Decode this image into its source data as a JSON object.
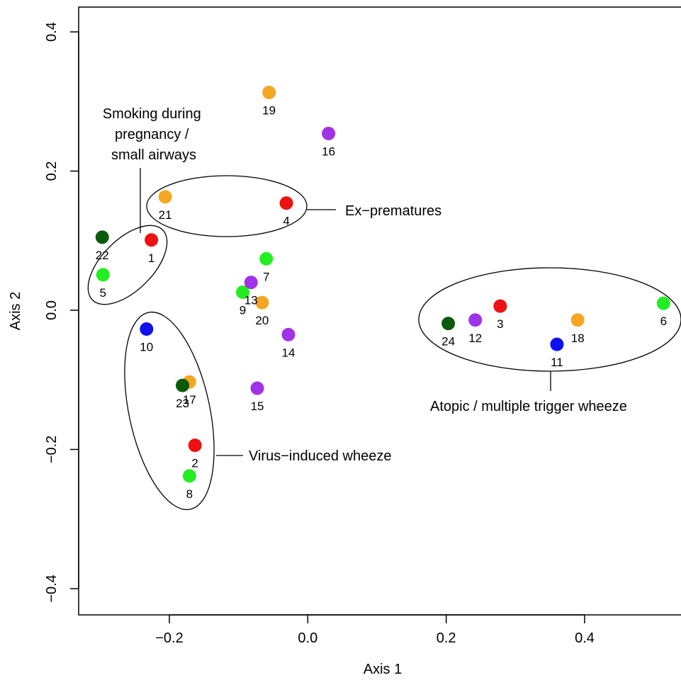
{
  "chart_data": {
    "type": "scatter",
    "title": "",
    "xlabel": "Axis 1",
    "ylabel": "Axis 2",
    "xlim": [
      -0.325,
      0.53
    ],
    "ylim": [
      -0.44,
      0.44
    ],
    "x_ticks": [
      -0.2,
      0.0,
      0.2,
      0.4
    ],
    "x_tick_labels": [
      "−0.2",
      "0.0",
      "0.2",
      "0.4"
    ],
    "y_ticks": [
      -0.4,
      -0.2,
      0.0,
      0.2,
      0.4
    ],
    "y_tick_labels": [
      "−0.4",
      "−0.2",
      "0.0",
      "0.2",
      "0.4"
    ],
    "grid": false,
    "legend": "none",
    "colors": {
      "red": "#ee1111",
      "orange": "#f5a623",
      "green": "#22ee22",
      "darkgreen": "#0b5a0b",
      "purple": "#a032e8",
      "blue": "#1010ee"
    },
    "points": [
      {
        "label": "1",
        "x": -0.226,
        "y": 0.101,
        "color": "red"
      },
      {
        "label": "2",
        "x": -0.163,
        "y": -0.194,
        "color": "red"
      },
      {
        "label": "3",
        "x": 0.278,
        "y": 0.006,
        "color": "red"
      },
      {
        "label": "4",
        "x": -0.031,
        "y": 0.154,
        "color": "red"
      },
      {
        "label": "5",
        "x": -0.296,
        "y": 0.051,
        "color": "green"
      },
      {
        "label": "6",
        "x": 0.514,
        "y": 0.01,
        "color": "green"
      },
      {
        "label": "7",
        "x": -0.06,
        "y": 0.074,
        "color": "green"
      },
      {
        "label": "8",
        "x": -0.171,
        "y": -0.238,
        "color": "green"
      },
      {
        "label": "9",
        "x": -0.094,
        "y": 0.026,
        "color": "green"
      },
      {
        "label": "10",
        "x": -0.233,
        "y": -0.027,
        "color": "blue"
      },
      {
        "label": "11",
        "x": 0.36,
        "y": -0.049,
        "color": "blue"
      },
      {
        "label": "12",
        "x": 0.242,
        "y": -0.014,
        "color": "purple"
      },
      {
        "label": "13",
        "x": -0.082,
        "y": 0.04,
        "color": "purple"
      },
      {
        "label": "14",
        "x": -0.028,
        "y": -0.035,
        "color": "purple"
      },
      {
        "label": "15",
        "x": -0.073,
        "y": -0.112,
        "color": "purple"
      },
      {
        "label": "16",
        "x": 0.03,
        "y": 0.254,
        "color": "purple"
      },
      {
        "label": "17",
        "x": -0.171,
        "y": -0.103,
        "color": "orange"
      },
      {
        "label": "18",
        "x": 0.39,
        "y": -0.014,
        "color": "orange"
      },
      {
        "label": "19",
        "x": -0.056,
        "y": 0.313,
        "color": "orange"
      },
      {
        "label": "20",
        "x": -0.066,
        "y": 0.011,
        "color": "orange"
      },
      {
        "label": "21",
        "x": -0.206,
        "y": 0.163,
        "color": "orange"
      },
      {
        "label": "22",
        "x": -0.297,
        "y": 0.105,
        "color": "darkgreen"
      },
      {
        "label": "23",
        "x": -0.181,
        "y": -0.108,
        "color": "darkgreen"
      },
      {
        "label": "24",
        "x": 0.203,
        "y": -0.019,
        "color": "darkgreen"
      }
    ],
    "annotations": [
      {
        "text_lines": [
          "Smoking during",
          "pregnancy /",
          "small airways"
        ],
        "group": [
          "1",
          "5"
        ]
      },
      {
        "text_lines": [
          "Ex−prematures"
        ],
        "group": [
          "21",
          "4"
        ]
      },
      {
        "text_lines": [
          "Virus−induced wheeze"
        ],
        "group": [
          "10",
          "17",
          "23",
          "2",
          "8"
        ]
      },
      {
        "text_lines": [
          "Atopic / multiple trigger wheeze"
        ],
        "group": [
          "24",
          "12",
          "3",
          "11",
          "18",
          "6"
        ]
      }
    ]
  }
}
